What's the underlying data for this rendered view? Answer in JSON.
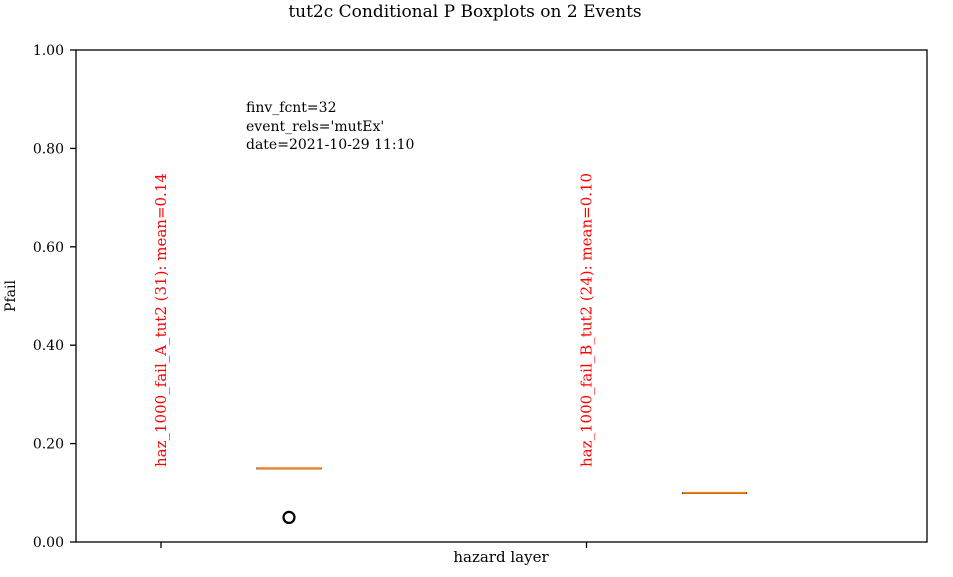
{
  "chart_data": {
    "type": "box",
    "title": "tut2c Conditional P Boxplots on 2 Events",
    "xlabel": "hazard layer",
    "ylabel": "Pfail",
    "ylim": [
      0,
      1
    ],
    "yticks": [
      "0.00",
      "0.20",
      "0.40",
      "0.60",
      "0.80",
      "1.00"
    ],
    "grid": false,
    "annotation": [
      "finv_fcnt=32",
      "event_rels='mutEx'",
      "date=2021-10-29 11:10"
    ],
    "groups": [
      {
        "label": "haz_1000_fail_A_tut2 (31): mean=0.14",
        "q1": 0.15,
        "median": 0.15,
        "q3": 0.15,
        "whisker_low": 0.15,
        "whisker_high": 0.15,
        "outliers": [
          0.05
        ]
      },
      {
        "label": "haz_1000_fail_B_tut2 (24): mean=0.10",
        "q1": 0.1,
        "median": 0.1,
        "q3": 0.1,
        "whisker_low": 0.1,
        "whisker_high": 0.1,
        "outliers": []
      }
    ],
    "colors": {
      "label": "#ff0000",
      "median": "#ff7f0e",
      "box": "#000000"
    }
  }
}
